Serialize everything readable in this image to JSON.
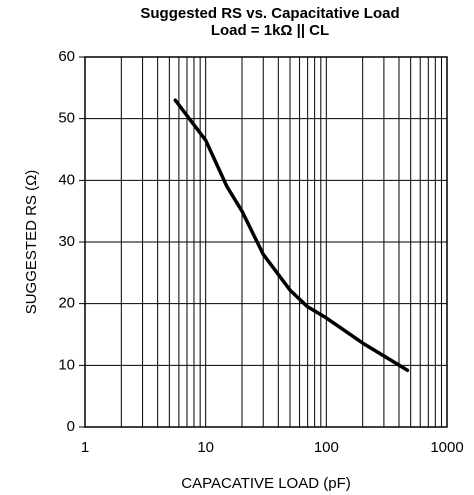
{
  "chart_data": {
    "type": "line",
    "title": "Suggested RS vs. Capacitative Load",
    "subtitle": "Load = 1kΩ || CL",
    "x_label": "CAPACATIVE LOAD (pF)",
    "y_label": "SUGGESTED RS (Ω)",
    "x_scale": "log",
    "x": [
      5.6,
      10,
      15,
      20,
      30,
      50,
      70,
      100,
      200,
      470
    ],
    "series": [
      {
        "name": null,
        "color": "#000000",
        "values": [
          53,
          46.5,
          39,
          35,
          28,
          22.2,
          19.5,
          17.7,
          13.6,
          9.2
        ]
      }
    ],
    "xlim": [
      1,
      1000
    ],
    "xticks": [
      1,
      10,
      100,
      1000
    ],
    "xgrid_minor": [
      2,
      3,
      4,
      5,
      6,
      7,
      8,
      9,
      20,
      30,
      40,
      50,
      60,
      70,
      80,
      90,
      200,
      300,
      400,
      500,
      600,
      700,
      800,
      900
    ],
    "ylim": [
      0,
      60
    ],
    "yticks": [
      0,
      10,
      20,
      30,
      40,
      50,
      60
    ],
    "grid": true
  }
}
